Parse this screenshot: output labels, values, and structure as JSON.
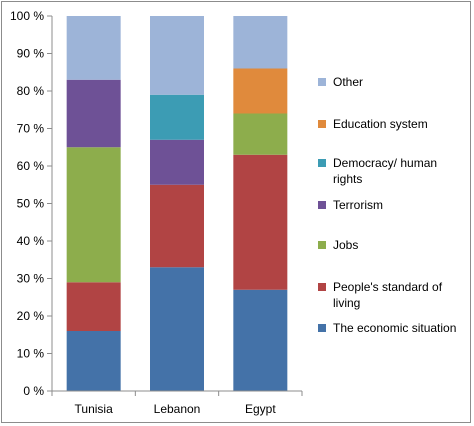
{
  "chart_data": {
    "type": "bar",
    "stacked": true,
    "percent": true,
    "categories": [
      "Tunisia",
      "Lebanon",
      "Egypt"
    ],
    "series": [
      {
        "name": "The economic situation",
        "color": "#4472a8",
        "values": [
          16,
          33,
          27
        ]
      },
      {
        "name": "People's standard of living",
        "color": "#b14444",
        "values": [
          13,
          22,
          36
        ]
      },
      {
        "name": "Jobs",
        "color": "#8dad4c",
        "values": [
          36,
          0,
          11
        ]
      },
      {
        "name": "Terrorism",
        "color": "#6e5196",
        "values": [
          18,
          12,
          0
        ]
      },
      {
        "name": "Democracy/ human rights",
        "color": "#3c9cb4",
        "values": [
          0,
          12,
          0
        ]
      },
      {
        "name": "Education system",
        "color": "#e08a3c",
        "values": [
          0,
          0,
          12
        ]
      },
      {
        "name": "Other",
        "color": "#9db4d8",
        "values": [
          17,
          21,
          14
        ]
      }
    ],
    "yticks": [
      "0 %",
      "10 %",
      "20 %",
      "30 %",
      "40 %",
      "50 %",
      "60 %",
      "70 %",
      "80 %",
      "90 %",
      "100 %"
    ],
    "ylim": [
      0,
      100
    ],
    "legend_position": "right",
    "legend_order": [
      "Other",
      "Education system",
      "Democracy/ human rights",
      "Terrorism",
      "Jobs",
      "People's standard of living",
      "The economic situation"
    ],
    "legend_display": {
      "The economic situation": [
        "The economic situation"
      ],
      "People's standard of living": [
        "People's standard of",
        "living"
      ],
      "Jobs": [
        "Jobs"
      ],
      "Terrorism": [
        "Terrorism"
      ],
      "Democracy/ human rights": [
        "Democracy/ human",
        "rights"
      ],
      "Education system": [
        "Education system"
      ],
      "Other": [
        "Other"
      ]
    },
    "grid": false
  }
}
